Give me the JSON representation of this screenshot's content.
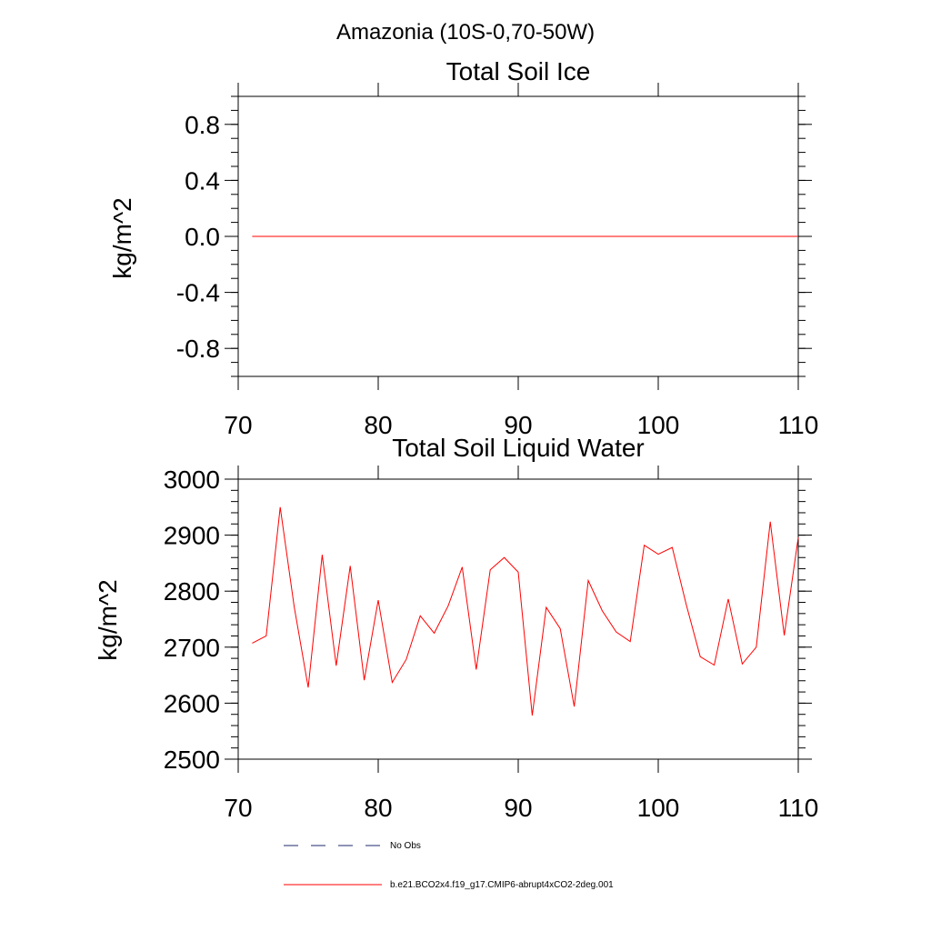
{
  "figure": {
    "suptitle": "Amazonia (10S-0,70-50W)"
  },
  "colors": {
    "model": "#ff0000",
    "obs": "#1f2a6b",
    "axes": "#000000"
  },
  "chart_data": [
    {
      "type": "line",
      "title": "Total Soil Ice",
      "xlabel": "",
      "ylabel": "kg/m^2",
      "xlim": [
        70,
        110
      ],
      "ylim": [
        -1.0,
        1.0
      ],
      "xticks": [
        70,
        80,
        90,
        100,
        110
      ],
      "xtick_labels": [
        "70",
        "80",
        "90",
        "100",
        "110"
      ],
      "yticks": [
        -0.8,
        -0.4,
        0.0,
        0.4,
        0.8
      ],
      "ytick_labels": [
        "-0.8",
        "-0.4",
        "0.0",
        "0.4",
        "0.8"
      ],
      "yminor_step": 0.1,
      "series": [
        {
          "name": "b.e21.BCO2x4.f19_g17.CMIP6-abrupt4xCO2-2deg.001",
          "x": [
            71,
            72,
            73,
            74,
            75,
            76,
            77,
            78,
            79,
            80,
            81,
            82,
            83,
            84,
            85,
            86,
            87,
            88,
            89,
            90,
            91,
            92,
            93,
            94,
            95,
            96,
            97,
            98,
            99,
            100,
            101,
            102,
            103,
            104,
            105,
            106,
            107,
            108,
            109,
            110
          ],
          "y": [
            0,
            0,
            0,
            0,
            0,
            0,
            0,
            0,
            0,
            0,
            0,
            0,
            0,
            0,
            0,
            0,
            0,
            0,
            0,
            0,
            0,
            0,
            0,
            0,
            0,
            0,
            0,
            0,
            0,
            0,
            0,
            0,
            0,
            0,
            0,
            0,
            0,
            0,
            0,
            0
          ]
        }
      ]
    },
    {
      "type": "line",
      "title": "Total Soil Liquid Water",
      "xlabel": "",
      "ylabel": "kg/m^2",
      "xlim": [
        70,
        110
      ],
      "ylim": [
        2500,
        3000
      ],
      "xticks": [
        70,
        80,
        90,
        100,
        110
      ],
      "xtick_labels": [
        "70",
        "80",
        "90",
        "100",
        "110"
      ],
      "yticks": [
        2500,
        2600,
        2700,
        2800,
        2900,
        3000
      ],
      "ytick_labels": [
        "2500",
        "2600",
        "2700",
        "2800",
        "2900",
        "3000"
      ],
      "yminor_step": 20,
      "series": [
        {
          "name": "b.e21.BCO2x4.f19_g17.CMIP6-abrupt4xCO2-2deg.001",
          "x": [
            71,
            72,
            73,
            74,
            75,
            76,
            77,
            78,
            79,
            80,
            81,
            82,
            83,
            84,
            85,
            86,
            87,
            88,
            89,
            90,
            91,
            92,
            93,
            94,
            95,
            96,
            97,
            98,
            99,
            100,
            101,
            102,
            103,
            104,
            105,
            106,
            107,
            108,
            109,
            110
          ],
          "y": [
            2707,
            2720,
            2950,
            2772,
            2628,
            2865,
            2667,
            2845,
            2641,
            2784,
            2637,
            2678,
            2756,
            2725,
            2774,
            2843,
            2660,
            2838,
            2860,
            2834,
            2578,
            2771,
            2733,
            2594,
            2819,
            2765,
            2727,
            2710,
            2882,
            2866,
            2878,
            2776,
            2683,
            2668,
            2786,
            2670,
            2700,
            2924,
            2721,
            2896
          ]
        }
      ]
    }
  ],
  "legend": {
    "placement": "bottom",
    "items": [
      {
        "label": "No Obs",
        "style": "dashed",
        "color_key": "obs"
      },
      {
        "label": "b.e21.BCO2x4.f19_g17.CMIP6-abrupt4xCO2-2deg.001",
        "style": "solid",
        "color_key": "model"
      }
    ]
  }
}
